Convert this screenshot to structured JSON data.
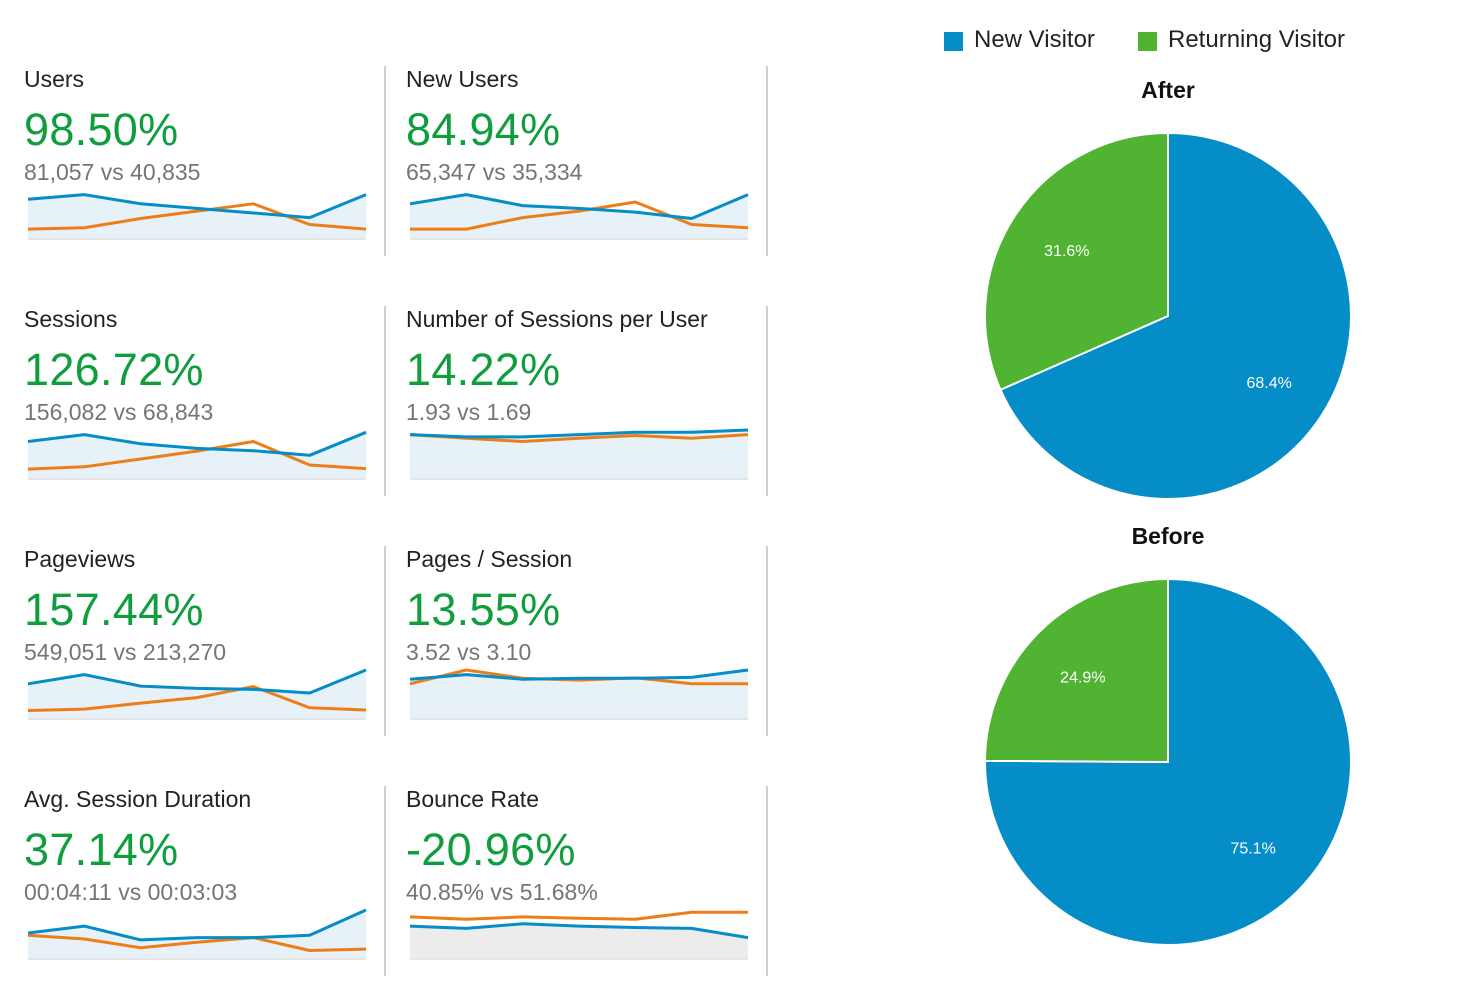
{
  "metrics": [
    {
      "name": "Users",
      "change": "98.50%",
      "compare": "81,057 vs 40,835",
      "current": [
        0.2,
        0.1,
        0.3,
        0.4,
        0.5,
        0.6,
        0.1
      ],
      "previous": [
        0.85,
        0.82,
        0.62,
        0.46,
        0.3,
        0.75,
        0.85
      ]
    },
    {
      "name": "New Users",
      "change": "84.94%",
      "compare": "65,347 vs 35,334",
      "current": [
        0.3,
        0.1,
        0.34,
        0.4,
        0.48,
        0.62,
        0.1
      ],
      "previous": [
        0.85,
        0.85,
        0.6,
        0.46,
        0.26,
        0.75,
        0.82
      ]
    },
    {
      "name": "Sessions",
      "change": "126.72%",
      "compare": "156,082 vs 68,843",
      "current": [
        0.25,
        0.1,
        0.3,
        0.4,
        0.45,
        0.55,
        0.05
      ],
      "previous": [
        0.85,
        0.8,
        0.63,
        0.46,
        0.25,
        0.76,
        0.84
      ]
    },
    {
      "name": "Number of Sessions per User",
      "change": "14.22%",
      "compare": "1.93 vs 1.69",
      "current": [
        0.1,
        0.15,
        0.15,
        0.1,
        0.05,
        0.05,
        0.0
      ],
      "previous": [
        0.1,
        0.18,
        0.25,
        0.18,
        0.12,
        0.18,
        0.1
      ]
    },
    {
      "name": "Pageviews",
      "change": "157.44%",
      "compare": "549,051 vs 213,270",
      "current": [
        0.3,
        0.1,
        0.35,
        0.4,
        0.42,
        0.5,
        0.0
      ],
      "previous": [
        0.88,
        0.85,
        0.72,
        0.6,
        0.36,
        0.82,
        0.87
      ]
    },
    {
      "name": "Pages / Session",
      "change": "13.55%",
      "compare": "3.52 vs 3.10",
      "current": [
        0.2,
        0.1,
        0.2,
        0.18,
        0.18,
        0.16,
        0.0
      ],
      "previous": [
        0.3,
        0.0,
        0.18,
        0.22,
        0.17,
        0.3,
        0.3
      ]
    },
    {
      "name": "Avg. Session Duration",
      "change": "37.14%",
      "compare": "00:04:11 vs 00:03:03",
      "current": [
        0.5,
        0.35,
        0.65,
        0.6,
        0.6,
        0.55,
        0.0
      ],
      "previous": [
        0.55,
        0.63,
        0.82,
        0.7,
        0.6,
        0.88,
        0.85
      ]
    },
    {
      "name": "Bounce Rate",
      "change": "-20.96%",
      "compare": "40.85% vs 51.68%",
      "current": [
        0.35,
        0.4,
        0.3,
        0.35,
        0.38,
        0.4,
        0.6
      ],
      "previous": [
        0.15,
        0.2,
        0.15,
        0.18,
        0.2,
        0.05,
        0.05
      ]
    }
  ],
  "colors": {
    "current": "#058dc7",
    "previous": "#ed7e17",
    "fill_current": "#e6f1f8",
    "fill_previous": "#ececec",
    "change_text": "#109d3d",
    "new_visitor": "#058dc7",
    "returning_visitor": "#50b432"
  },
  "legend": [
    {
      "label": "New Visitor",
      "color": "#058dc7"
    },
    {
      "label": "Returning Visitor",
      "color": "#50b432"
    }
  ],
  "chart_data": [
    {
      "type": "pie",
      "title": "After",
      "categories": [
        "New Visitor",
        "Returning Visitor"
      ],
      "values": [
        68.4,
        31.6
      ],
      "labels": [
        "68.4%",
        "31.6%"
      ],
      "colors": [
        "#058dc7",
        "#50b432"
      ]
    },
    {
      "type": "pie",
      "title": "Before",
      "categories": [
        "New Visitor",
        "Returning Visitor"
      ],
      "values": [
        75.1,
        24.9
      ],
      "labels": [
        "75.1%",
        "24.9%"
      ],
      "colors": [
        "#058dc7",
        "#50b432"
      ]
    }
  ]
}
